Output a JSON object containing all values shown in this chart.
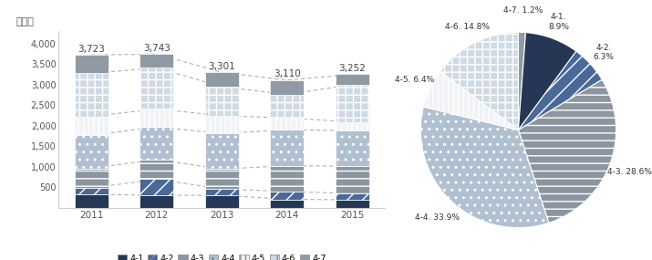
{
  "years": [
    2011,
    2012,
    2013,
    2014,
    2015
  ],
  "totals": [
    3723,
    3743,
    3301,
    3110,
    3252
  ],
  "segments": {
    "4-1": [
      330,
      310,
      310,
      210,
      200
    ],
    "4-2": [
      155,
      390,
      155,
      190,
      155
    ],
    "4-3": [
      480,
      480,
      480,
      630,
      660
    ],
    "4-4": [
      800,
      790,
      870,
      870,
      870
    ],
    "4-5": [
      460,
      440,
      430,
      290,
      210
    ],
    "4-6": [
      1048,
      1003,
      706,
      570,
      907
    ],
    "4-7": [
      450,
      330,
      350,
      350,
      250
    ]
  },
  "pie_values": [
    8.9,
    6.3,
    28.6,
    33.9,
    6.4,
    14.8,
    1.2
  ],
  "colors_list": [
    "#253754",
    "#4a6898",
    "#8c96a0",
    "#b0c0d0",
    "#f0f2f5",
    "#d0dae4",
    "#909aa4"
  ],
  "hatches_list": [
    "",
    "//",
    "--",
    "..",
    "|||",
    "++",
    ""
  ],
  "ylabel": "백만원",
  "ylim": [
    0,
    4300
  ],
  "yticks": [
    0,
    500,
    1000,
    1500,
    2000,
    2500,
    3000,
    3500,
    4000
  ],
  "legend_labels": [
    "4-1",
    "4-2",
    "4-3",
    "4-4",
    "4-5",
    "4-6",
    "4-7"
  ],
  "pie_labels_order": [
    "4-7. 1.2%",
    "4-1.\n8.9%",
    "4-2.\n6.3%",
    "4-3. 28.6%",
    "4-4. 33.9%",
    "4-5. 6.4%",
    "4-6. 14.8%"
  ],
  "pie_order": [
    6,
    0,
    1,
    2,
    3,
    4,
    5
  ]
}
